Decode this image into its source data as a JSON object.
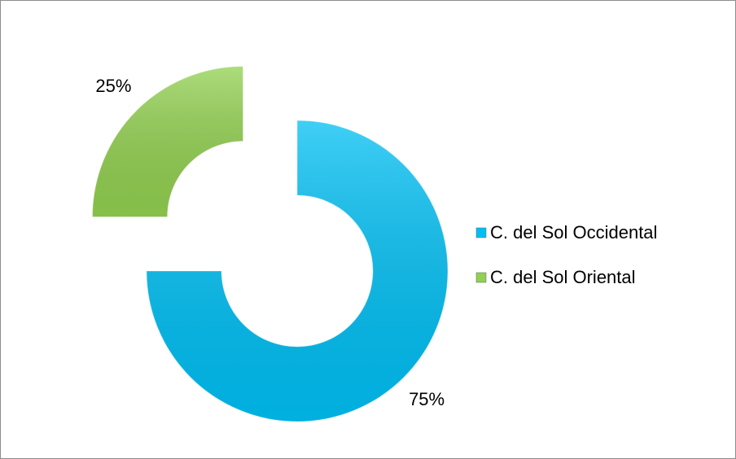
{
  "chart_data": {
    "type": "donut",
    "categories": [
      "C. del Sol Occidental",
      "C. del Sol Oriental"
    ],
    "values": [
      75,
      25
    ],
    "value_labels": [
      "75%",
      "25%"
    ],
    "colors": [
      "#00bff3",
      "#92d050"
    ],
    "legend": "right"
  }
}
